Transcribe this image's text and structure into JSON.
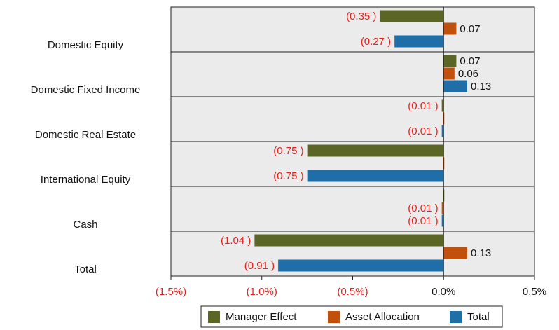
{
  "chart_data": {
    "type": "bar",
    "orientation": "horizontal",
    "categories": [
      "Domestic Equity",
      "Domestic Fixed Income",
      "Domestic Real Estate",
      "International Equity",
      "Cash",
      "Total"
    ],
    "series": [
      {
        "name": "Manager Effect",
        "color": "#5b6526",
        "values": [
          -0.35,
          0.07,
          -0.01,
          -0.75,
          0.0,
          -1.04
        ],
        "value_labels": [
          "(0.35 )",
          "0.07",
          "(0.01 )",
          "(0.75 )",
          null,
          "(1.04 )"
        ]
      },
      {
        "name": "Asset Allocation",
        "color": "#c0500c",
        "values": [
          0.07,
          0.06,
          0.0,
          0.0,
          -0.01,
          0.13
        ],
        "value_labels": [
          "0.07",
          "0.06",
          null,
          null,
          "(0.01 )",
          "0.13"
        ]
      },
      {
        "name": "Total",
        "color": "#1f6ea8",
        "values": [
          -0.27,
          0.13,
          -0.01,
          -0.75,
          -0.01,
          -0.91
        ],
        "value_labels": [
          "(0.27 )",
          "0.13",
          "(0.01 )",
          "(0.75 )",
          "(0.01 )",
          "(0.91 )"
        ]
      }
    ],
    "xlim": [
      -1.5,
      0.5
    ],
    "xticks": [
      {
        "value": -1.5,
        "label": "(1.5%)"
      },
      {
        "value": -1.0,
        "label": "(1.0%)"
      },
      {
        "value": -0.5,
        "label": "(0.5%)"
      },
      {
        "value": 0.0,
        "label": "0.0%"
      },
      {
        "value": 0.5,
        "label": "0.5%"
      }
    ],
    "negative_color": "#e8201c",
    "legend": "bottom"
  }
}
